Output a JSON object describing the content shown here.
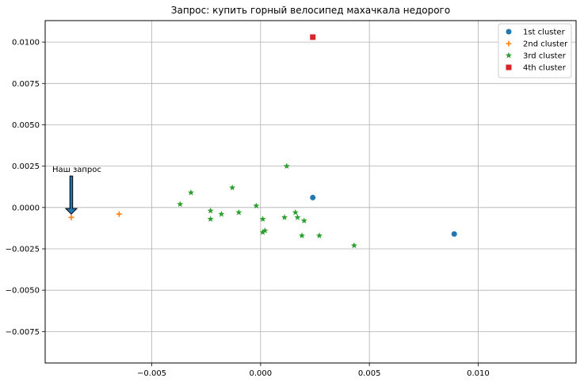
{
  "chart_data": {
    "type": "scatter",
    "title": "Запрос: купить горный велосипед махачкала недорого",
    "xlabel": "",
    "ylabel": "",
    "xlim": [
      -0.0099,
      0.0145
    ],
    "ylim": [
      -0.0094,
      0.0113
    ],
    "grid": true,
    "legend_position": "top-right",
    "x_ticks": [
      -0.005,
      0.0,
      0.005,
      0.01
    ],
    "x_tick_labels": [
      "−0.005",
      "0.000",
      "0.005",
      "0.010"
    ],
    "y_ticks": [
      -0.0075,
      -0.005,
      -0.0025,
      0.0,
      0.0025,
      0.005,
      0.0075,
      0.01
    ],
    "y_tick_labels": [
      "−0.0075",
      "−0.0050",
      "−0.0025",
      "0.0000",
      "0.0025",
      "0.0050",
      "0.0075",
      "0.0100"
    ],
    "series": [
      {
        "name": "1st cluster",
        "marker": "circle",
        "color": "#1f77b4",
        "points": [
          [
            0.0024,
            0.0006
          ],
          [
            0.0089,
            -0.0016
          ]
        ]
      },
      {
        "name": "2nd cluster",
        "marker": "plus",
        "color": "#ff7f0e",
        "points": [
          [
            -0.0087,
            -0.0006
          ],
          [
            -0.0065,
            -0.0004
          ]
        ]
      },
      {
        "name": "3rd cluster",
        "marker": "star",
        "color": "#2ca02c",
        "points": [
          [
            0.0012,
            0.0025
          ],
          [
            -0.0013,
            0.0012
          ],
          [
            -0.0032,
            0.0009
          ],
          [
            -0.0037,
            0.0002
          ],
          [
            -0.0023,
            -0.0002
          ],
          [
            -0.001,
            -0.0003
          ],
          [
            -0.0018,
            -0.0004
          ],
          [
            -0.0023,
            -0.0007
          ],
          [
            -0.0002,
            0.0001
          ],
          [
            0.0001,
            -0.0007
          ],
          [
            0.0011,
            -0.0006
          ],
          [
            0.0016,
            -0.0003
          ],
          [
            0.0017,
            -0.0006
          ],
          [
            0.002,
            -0.0008
          ],
          [
            0.0001,
            -0.0015
          ],
          [
            0.0002,
            -0.0014
          ],
          [
            0.0019,
            -0.0017
          ],
          [
            0.0027,
            -0.0017
          ],
          [
            0.0043,
            -0.0023
          ]
        ]
      },
      {
        "name": "4th cluster",
        "marker": "square",
        "color": "#d62728",
        "points": [
          [
            0.0024,
            0.0103
          ]
        ]
      }
    ],
    "annotation": {
      "text": "Наш запрос",
      "from": [
        -0.0087,
        0.0019
      ],
      "to": [
        -0.0087,
        -0.0004
      ]
    }
  }
}
